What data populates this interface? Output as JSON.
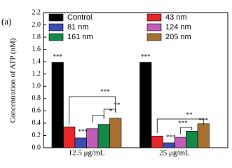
{
  "chart_data": {
    "type": "bar",
    "panel_label": "(a)",
    "y_label": "Concentration of ATP (nM)",
    "categories": [
      "12.5 μg/mL",
      "25 μg/mL"
    ],
    "series": [
      {
        "name": "Control",
        "color": "#000000",
        "values": [
          1.39,
          1.39
        ]
      },
      {
        "name": "43 nm",
        "color": "#e8262a",
        "values": [
          0.34,
          0.19
        ]
      },
      {
        "name": "81 nm",
        "color": "#3b4db5",
        "values": [
          0.16,
          0.08
        ]
      },
      {
        "name": "124 nm",
        "color": "#c35bb8",
        "values": [
          0.31,
          0.17
        ]
      },
      {
        "name": "161 nm",
        "color": "#138a4a",
        "values": [
          0.38,
          0.27
        ]
      },
      {
        "name": "205 nm",
        "color": "#a8702e",
        "values": [
          0.48,
          0.39
        ]
      }
    ],
    "ylim": [
      0,
      2.2
    ],
    "yticks": [
      {
        "value": 0,
        "label": "0.0"
      },
      0.2,
      0.4,
      0.6,
      0.8,
      {
        "value": 1,
        "label": "1.0"
      },
      1.2,
      1.4,
      1.6,
      1.8,
      {
        "value": 2,
        "label": "2.0"
      },
      2.2
    ],
    "annotations": [
      "***",
      "***",
      "***",
      "***",
      "***",
      "*",
      "**",
      "***",
      "***",
      "**"
    ]
  }
}
